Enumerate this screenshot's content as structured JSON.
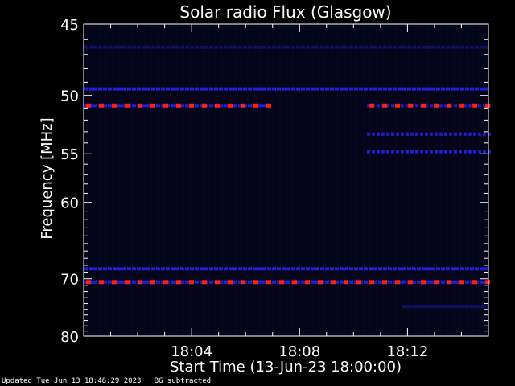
{
  "chart_data": {
    "type": "heatmap",
    "title": "Solar radio Flux (Glasgow)",
    "ylabel": "Frequency [MHz]",
    "xlabel": "Start Time (13-Jun-23 18:00:00)",
    "y_ticks": [
      45,
      50,
      55,
      60,
      70,
      80
    ],
    "y_scale": "reciprocal",
    "ylim": [
      45,
      80
    ],
    "x_ticks": [
      "18:04",
      "18:08",
      "18:12"
    ],
    "xlim_minutes": [
      0,
      15
    ],
    "x_tick_minutes": [
      4,
      8,
      12
    ],
    "bands": [
      {
        "freq_mhz": 46.5,
        "t_start": 0.0,
        "t_end": 15.0,
        "intensity": "weak"
      },
      {
        "freq_mhz": 49.5,
        "t_start": 0.0,
        "t_end": 15.0,
        "intensity": "medium"
      },
      {
        "freq_mhz": 50.8,
        "t_start": 0.0,
        "t_end": 6.8,
        "intensity": "strong"
      },
      {
        "freq_mhz": 50.8,
        "t_start": 10.5,
        "t_end": 15.0,
        "intensity": "strong"
      },
      {
        "freq_mhz": 53.2,
        "t_start": 10.5,
        "t_end": 15.0,
        "intensity": "medium"
      },
      {
        "freq_mhz": 54.8,
        "t_start": 10.5,
        "t_end": 15.0,
        "intensity": "medium"
      },
      {
        "freq_mhz": 68.5,
        "t_start": 0.0,
        "t_end": 15.0,
        "intensity": "medium"
      },
      {
        "freq_mhz": 70.5,
        "t_start": 0.0,
        "t_end": 15.0,
        "intensity": "strong"
      },
      {
        "freq_mhz": 74.5,
        "t_start": 11.8,
        "t_end": 15.0,
        "intensity": "weak"
      }
    ],
    "palette": {
      "background": "#000000",
      "plot_bg": "#05051a",
      "weak": "#101060",
      "medium": "#2020d8",
      "strong": "#ff2010",
      "axis": "#ffffff"
    },
    "grid": false
  },
  "footer": {
    "updated": "Updated Tue Jun 13 18:48:29 2023",
    "bg_note": "BG subtracted"
  }
}
